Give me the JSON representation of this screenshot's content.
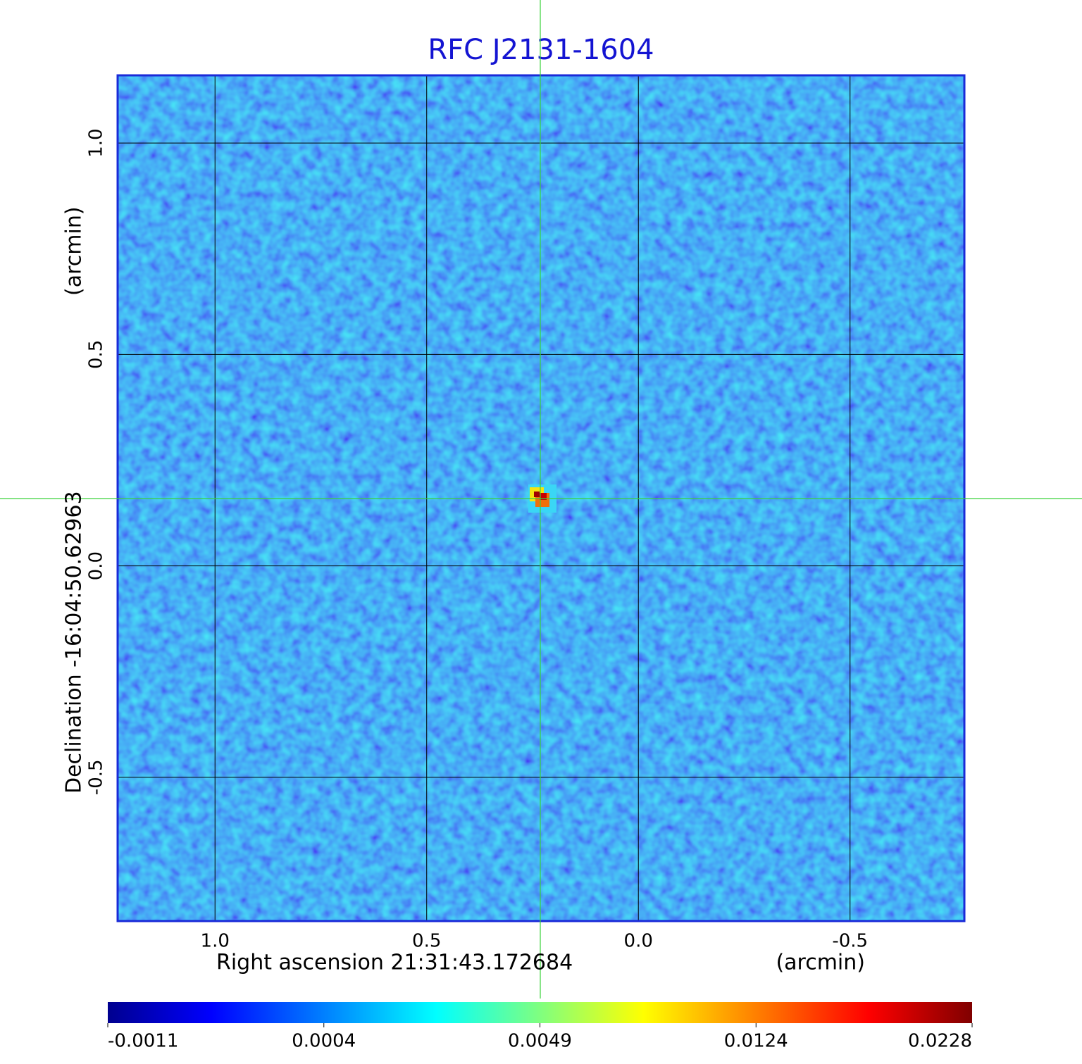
{
  "chart_data": {
    "type": "image",
    "title": "RFC J2131-1604",
    "xlabel": "Right ascension  21:31:43.172684",
    "xunit": "(arcmin)",
    "ylabel": "Declination  -16:04:50.62963",
    "yunit": "(arcmin)",
    "xlim": [
      1.23,
      -0.77
    ],
    "xticks": [
      {
        "value": 1,
        "label": "1.0"
      },
      0.5,
      {
        "value": 0,
        "label": "0.0"
      },
      -0.5
    ],
    "ylim": [
      -0.84,
      1.16
    ],
    "yticks": [
      {
        "value": 1,
        "label": "1.0"
      },
      0.5,
      {
        "value": 0,
        "label": "0.0"
      },
      -0.5
    ],
    "grid": true,
    "colormap": "jet",
    "colorbar": {
      "ticks": [
        -0.0011,
        0.0004,
        0.0049,
        0.0124,
        0.0228
      ]
    }
  }
}
